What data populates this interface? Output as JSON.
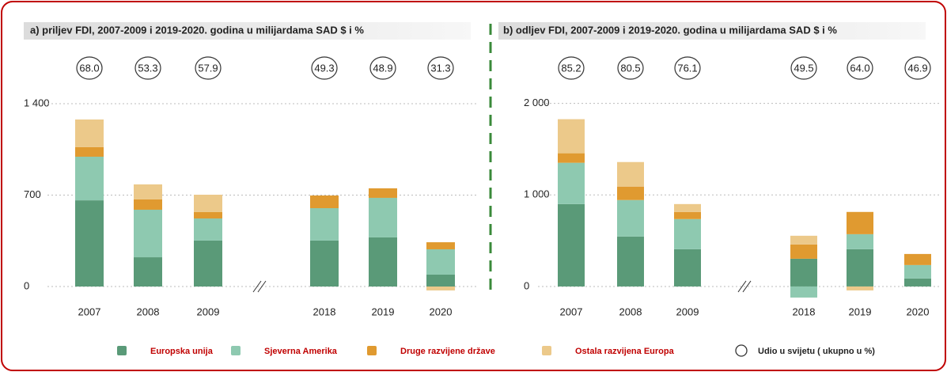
{
  "chart_data": [
    {
      "type": "bar",
      "stacked": true,
      "title": "a) priljev FDI, 2007-2009  i 2019-2020. godina u milijardama SAD $ i %",
      "categories": [
        "2007",
        "2008",
        "2009",
        "2018",
        "2019",
        "2020"
      ],
      "series": [
        {
          "name": "Europska unija",
          "color": "#5a9a78",
          "values": [
            660,
            224,
            352,
            352,
            376,
            91
          ]
        },
        {
          "name": "Sjeverna Amerika",
          "color": "#8ec9b0",
          "values": [
            334,
            364,
            169,
            248,
            303,
            194
          ]
        },
        {
          "name": "Druge razvijene države",
          "color": "#e09a30",
          "values": [
            73,
            79,
            49,
            97,
            73,
            54
          ]
        },
        {
          "name": "Ostala razvijena Europa",
          "color": "#ecc98a",
          "values": [
            212,
            115,
            133,
            0,
            0,
            -30
          ]
        }
      ],
      "shares": [
        68,
        53.3,
        57.9,
        49.3,
        48.9,
        31.3
      ],
      "share_labels": [
        "68.0",
        "53.3",
        "57.9",
        "49.3",
        "48.9",
        "31.3"
      ],
      "share_name": "Udio u svijetu ( ukupno u %)",
      "ylim": [
        -100,
        1500
      ],
      "yticks": [
        0,
        700,
        {
          "value": 1400,
          "label": "1 400"
        }
      ],
      "grid": true
    },
    {
      "type": "bar",
      "stacked": true,
      "title": "b) odljev FDI, 2007-2009  i 2019-2020. godina u milijardama SAD $ i %",
      "categories": [
        "2007",
        "2008",
        "2009",
        "2018",
        "2019",
        "2020"
      ],
      "series": [
        {
          "name": "Europska unija",
          "color": "#5a9a78",
          "values": [
            900,
            545,
            407,
            303,
            407,
            87
          ]
        },
        {
          "name": "Sjeverna Amerika",
          "color": "#8ec9b0",
          "values": [
            451,
            399,
            329,
            -121,
            164,
            147
          ]
        },
        {
          "name": "Druge razvijene države",
          "color": "#e09a30",
          "values": [
            104,
            147,
            78,
            156,
            243,
            121
          ]
        },
        {
          "name": "Ostala razvijena Europa",
          "color": "#ecc98a",
          "values": [
            372,
            268,
            86,
            95,
            -43,
            0
          ]
        }
      ],
      "shares": [
        85.2,
        80.5,
        76.1,
        49.5,
        64,
        46.9
      ],
      "share_labels": [
        "85.2",
        "80.5",
        "76.1",
        "49.5",
        "64.0",
        "46.9"
      ],
      "ylim": [
        -150,
        2100
      ],
      "yticks": [
        0,
        {
          "value": 1000,
          "label": "1 000"
        },
        {
          "value": 2000,
          "label": "2 000"
        }
      ],
      "grid": true
    }
  ]
}
